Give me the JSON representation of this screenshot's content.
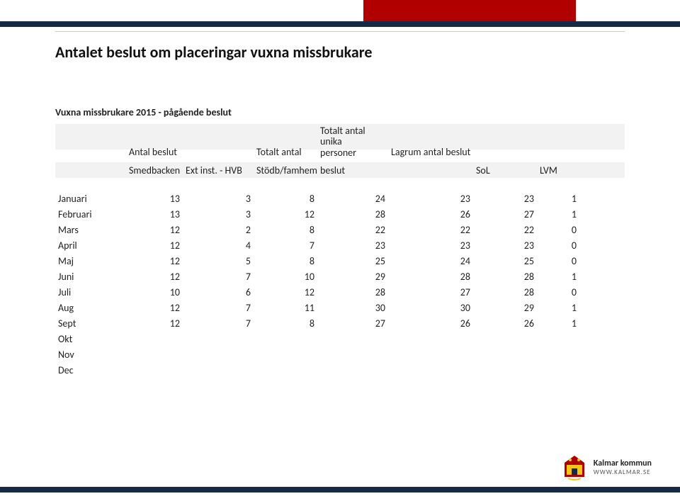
{
  "title": "Antalet beslut om placeringar vuxna missbrukare",
  "subtitle": "Vuxna missbrukare 2015 - pågående beslut",
  "header1": {
    "antal_beslut": "Antal beslut",
    "totalt_antal": "Totalt antal",
    "totalt_unika_line1": "Totalt antal unika",
    "totalt_unika_line2": "personer",
    "lagrum": "Lagrum antal beslut"
  },
  "header2": {
    "smedbacken": "Smedbacken",
    "ext_inst": "Ext inst. - HVB",
    "stodb": "Stödb/famhem",
    "beslut": "beslut",
    "sol": "SoL",
    "lvm": "LVM"
  },
  "rows": [
    {
      "m": "Januari",
      "a": 13,
      "b": 3,
      "c": 8,
      "d": 24,
      "e": 23,
      "f": 23,
      "g": 1
    },
    {
      "m": "Februari",
      "a": 13,
      "b": 3,
      "c": 12,
      "d": 28,
      "e": 26,
      "f": 27,
      "g": 1
    },
    {
      "m": "Mars",
      "a": 12,
      "b": 2,
      "c": 8,
      "d": 22,
      "e": 22,
      "f": 22,
      "g": 0
    },
    {
      "m": "April",
      "a": 12,
      "b": 4,
      "c": 7,
      "d": 23,
      "e": 23,
      "f": 23,
      "g": 0
    },
    {
      "m": "Maj",
      "a": 12,
      "b": 5,
      "c": 8,
      "d": 25,
      "e": 24,
      "f": 25,
      "g": 0
    },
    {
      "m": "Juni",
      "a": 12,
      "b": 7,
      "c": 10,
      "d": 29,
      "e": 28,
      "f": 28,
      "g": 1
    },
    {
      "m": "Juli",
      "a": 10,
      "b": 6,
      "c": 12,
      "d": 28,
      "e": 27,
      "f": 28,
      "g": 0
    },
    {
      "m": "Aug",
      "a": 12,
      "b": 7,
      "c": 11,
      "d": 30,
      "e": 30,
      "f": 29,
      "g": 1
    },
    {
      "m": "Sept",
      "a": 12,
      "b": 7,
      "c": 8,
      "d": 27,
      "e": 26,
      "f": 26,
      "g": 1
    }
  ],
  "trailing": [
    "Okt",
    "Nov",
    "Dec"
  ],
  "footer": {
    "name": "Kalmar kommun",
    "url": "WWW.KALMAR.SE"
  },
  "colors": {
    "red": "#b00000",
    "navy": "#162a47",
    "greyline": "#cccccc",
    "header_bg": "#f2f2f2",
    "text": "#222222",
    "bg": "#ffffff"
  }
}
